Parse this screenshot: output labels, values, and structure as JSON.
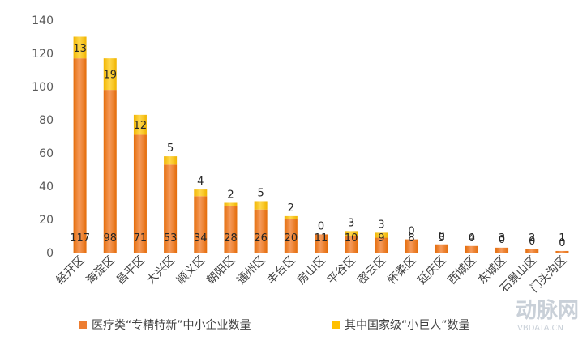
{
  "chart_data": {
    "type": "bar",
    "stacked": true,
    "categories": [
      "经开区",
      "海淀区",
      "昌平区",
      "大兴区",
      "顺义区",
      "朝阳区",
      "通州区",
      "丰台区",
      "房山区",
      "平谷区",
      "密云区",
      "怀柔区",
      "延庆区",
      "西城区",
      "东城区",
      "石景山区",
      "门头沟区"
    ],
    "series": [
      {
        "name": "医疗类“专精特新”中小企业数量",
        "color": "#ed7d31",
        "values": [
          117,
          98,
          71,
          53,
          34,
          28,
          26,
          20,
          11,
          10,
          9,
          8,
          5,
          4,
          3,
          2,
          1
        ]
      },
      {
        "name": "其中国家级“小巨人”数量",
        "color": "#ffc000",
        "values": [
          13,
          19,
          12,
          5,
          4,
          2,
          5,
          2,
          0,
          3,
          3,
          0,
          0,
          0,
          0,
          0,
          0
        ]
      }
    ],
    "ylim": [
      0,
      140
    ],
    "yticks": [
      0,
      20,
      40,
      60,
      80,
      100,
      120,
      140
    ],
    "grid": false,
    "legend_position": "bottom"
  },
  "watermark": {
    "brand": "动脉网",
    "url": "VBDATA.CN"
  }
}
